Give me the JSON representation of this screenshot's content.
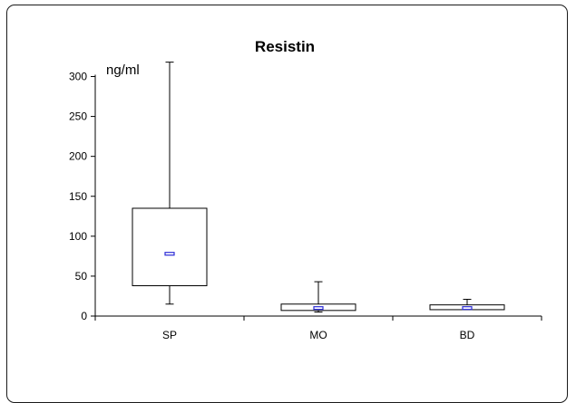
{
  "chart_data": {
    "type": "boxplot",
    "title": "Resistin",
    "ylabel": "ng/ml",
    "xlabel": "",
    "ylim": [
      0,
      300
    ],
    "yticks": [
      0,
      50,
      100,
      150,
      200,
      250,
      300
    ],
    "grid": false,
    "legend": "none",
    "categories": [
      "SP",
      "MO",
      "BD"
    ],
    "boxes": [
      {
        "category": "SP",
        "min": 15,
        "q1": 38,
        "median": 78,
        "q3": 135,
        "max": 318
      },
      {
        "category": "MO",
        "min": 5,
        "q1": 7,
        "median": 10,
        "q3": 15,
        "max": 43
      },
      {
        "category": "BD",
        "min": 8,
        "q1": 8,
        "median": 10,
        "q3": 14,
        "max": 21
      }
    ],
    "colors": {
      "axis": "#000000",
      "box_stroke": "#000000",
      "median_marker": "#2b2bd6"
    }
  }
}
